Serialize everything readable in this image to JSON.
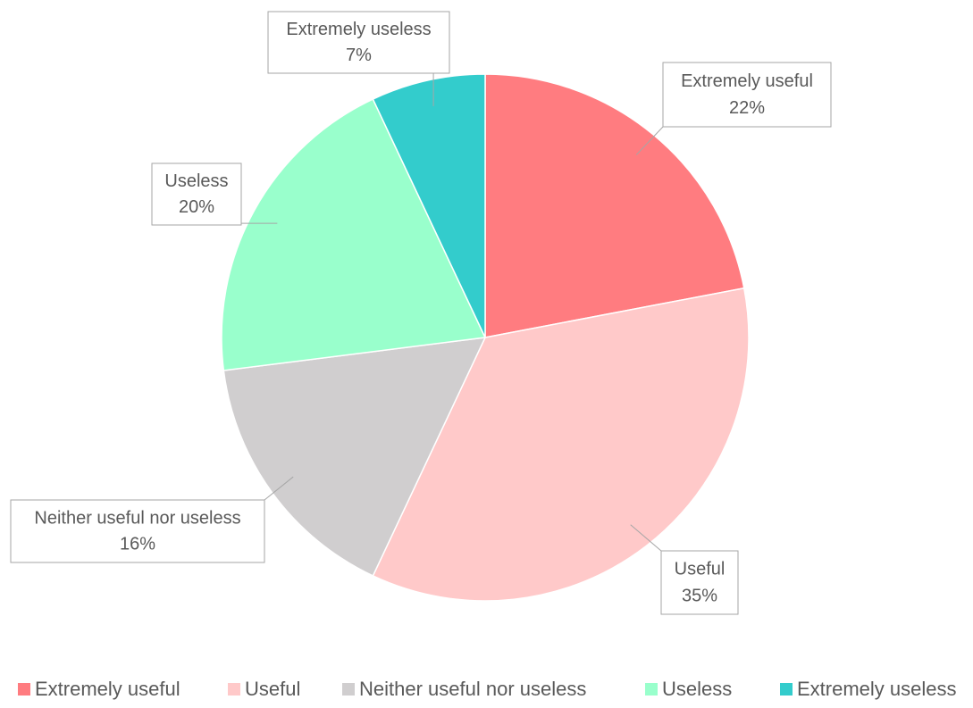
{
  "chart_data": {
    "type": "pie",
    "categories": [
      "Extremely useful",
      "Useful",
      "Neither useful nor useless",
      "Useless",
      "Extremely useless"
    ],
    "values": [
      22,
      35,
      16,
      20,
      7
    ],
    "value_labels": [
      "22%",
      "35%",
      "16%",
      "20%",
      "7%"
    ],
    "colors": [
      "#ff7c80",
      "#ffc9c9",
      "#d0cecf",
      "#99ffcc",
      "#33cccc"
    ],
    "legend": "bottom"
  }
}
